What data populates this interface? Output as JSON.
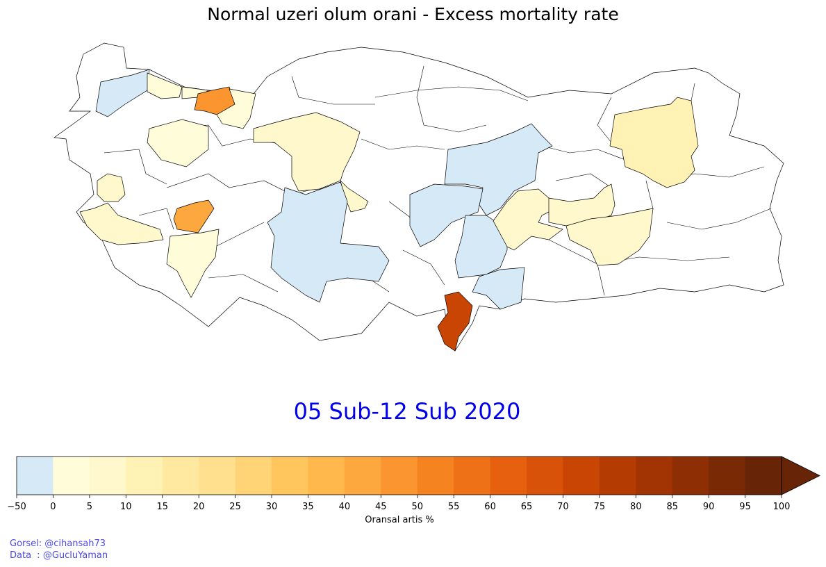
{
  "title": "Normal uzeri olum orani - Excess mortality rate",
  "date_label": "05 Sub-12 Sub 2020",
  "colorbar": {
    "label": "Oransal artis %",
    "ticks": [
      "−50",
      "0",
      "5",
      "10",
      "15",
      "20",
      "25",
      "30",
      "35",
      "40",
      "45",
      "50",
      "55",
      "60",
      "65",
      "70",
      "75",
      "80",
      "85",
      "90",
      "95",
      "100"
    ],
    "colors": [
      "#d6e9f6",
      "#fffcda",
      "#fff8cc",
      "#fff2b4",
      "#ffe9a0",
      "#ffe08f",
      "#ffd477",
      "#fec65d",
      "#feb84b",
      "#fda83f",
      "#fb9530",
      "#f48320",
      "#ee7117",
      "#e6600f",
      "#d9520a",
      "#c84504",
      "#b43c03",
      "#a23403",
      "#8e2e04",
      "#7a2905",
      "#672406"
    ],
    "extend_color": "#672406"
  },
  "credits": {
    "line1": "Gorsel: @cihansah73",
    "line2": "Data  : @GucluYaman"
  },
  "colors": {
    "date_label": "#0000ee",
    "credits": "#4848ee",
    "no_data": "#ffffff",
    "outline": "#000000"
  }
}
